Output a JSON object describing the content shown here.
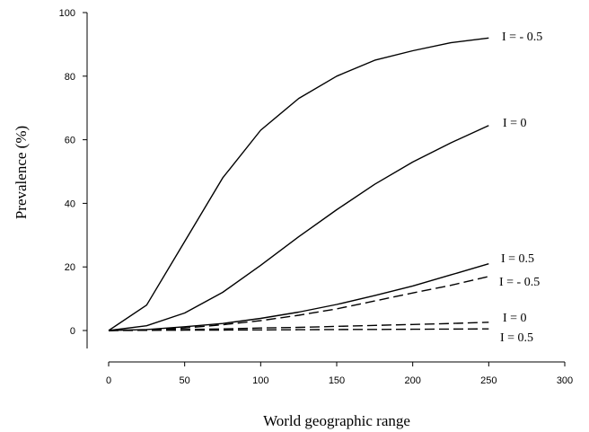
{
  "chart_data": {
    "type": "line",
    "title": "",
    "xlabel": "World geographic range",
    "ylabel": "Prevalence (%)",
    "xlim": [
      0,
      300
    ],
    "ylim": [
      0,
      100
    ],
    "xticks": [
      0,
      50,
      100,
      150,
      200,
      250,
      300
    ],
    "yticks": [
      0,
      20,
      40,
      60,
      80,
      100
    ],
    "grid": false,
    "legend": "none",
    "x": [
      0,
      25,
      50,
      75,
      100,
      125,
      150,
      175,
      200,
      225,
      250
    ],
    "series": [
      {
        "label": "I = - 0.5",
        "style": "solid",
        "values": [
          0,
          8,
          28,
          48,
          63,
          73,
          80,
          85,
          88,
          90.5,
          92
        ]
      },
      {
        "label": "I = 0",
        "style": "solid",
        "values": [
          0,
          1.5,
          5.5,
          12,
          20.5,
          29.5,
          38,
          46,
          53,
          59,
          64.5
        ]
      },
      {
        "label": "I = 0.5",
        "style": "solid",
        "values": [
          0,
          0.3,
          1.2,
          2.2,
          3.8,
          5.8,
          8.2,
          11,
          14,
          17.5,
          21
        ]
      },
      {
        "label": "I = - 0.5",
        "style": "dashed",
        "values": [
          0,
          0.2,
          0.8,
          1.8,
          3.1,
          4.8,
          6.8,
          9.3,
          11.8,
          14.2,
          17
        ]
      },
      {
        "label": "I = 0",
        "style": "dashed",
        "values": [
          0,
          0.1,
          0.3,
          0.5,
          0.8,
          1.0,
          1.3,
          1.6,
          1.9,
          2.2,
          2.6
        ]
      },
      {
        "label": "I = 0.5",
        "style": "dashed",
        "values": [
          0,
          0.05,
          0.1,
          0.15,
          0.2,
          0.25,
          0.3,
          0.35,
          0.4,
          0.45,
          0.5
        ]
      }
    ]
  }
}
